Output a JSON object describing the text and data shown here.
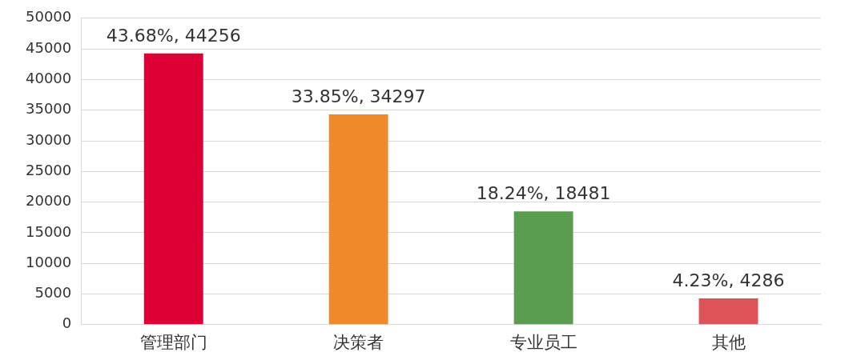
{
  "chart_data": {
    "type": "bar",
    "categories": [
      "管理部门",
      "决策者",
      "专业员工",
      "其他"
    ],
    "values": [
      44256,
      34297,
      18481,
      4286
    ],
    "colors": [
      "#de0034",
      "#ef8a2c",
      "#5a9d4f",
      "#de525a"
    ],
    "value_labels": [
      "43.68%, 44256",
      "33.85%, 34297",
      "18.24%, 18481",
      "4.23%, 4286"
    ],
    "ylim": [
      0,
      50000
    ],
    "yticks": [
      0,
      5000,
      10000,
      15000,
      20000,
      25000,
      30000,
      35000,
      40000,
      45000,
      50000
    ],
    "grid": "y",
    "legend": false
  }
}
